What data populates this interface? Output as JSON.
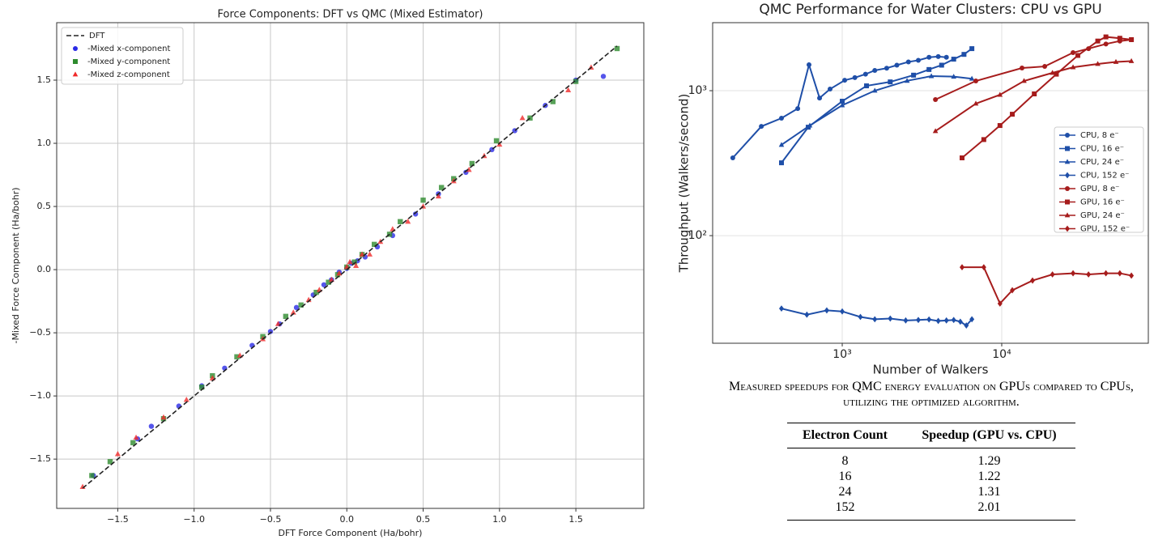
{
  "chart_data": [
    {
      "type": "scatter",
      "title": "Force Components: DFT vs QMC (Mixed Estimator)",
      "xlabel": "DFT Force Component (Ha/bohr)",
      "ylabel": "-Mixed Force Component (Ha/bohr)",
      "xlim": [
        -1.9,
        1.945
      ],
      "ylim": [
        -1.89,
        1.955
      ],
      "xticks": [
        {
          "value": -1.5,
          "label": "−1.5"
        },
        {
          "value": -1,
          "label": "−1.0"
        },
        {
          "value": -0.5,
          "label": "−0.5"
        },
        {
          "value": 0,
          "label": "0.0"
        },
        0.5,
        {
          "value": 1,
          "label": "1.0"
        },
        1.5
      ],
      "yticks": [
        {
          "value": -1.5,
          "label": "−1.5"
        },
        {
          "value": -1,
          "label": "−1.0"
        },
        {
          "value": -0.5,
          "label": "−0.5"
        },
        {
          "value": 0,
          "label": "0.0"
        },
        0.5,
        {
          "value": 1,
          "label": "1.0"
        },
        1.5
      ],
      "grid": true,
      "legend": "upper left",
      "reference_line": {
        "name": "DFT",
        "color": "#222222",
        "x": [
          -1.73,
          1.77
        ],
        "y": [
          -1.73,
          1.77
        ]
      },
      "series": [
        {
          "name": "-Mixed x-component",
          "color": "#2a2ae6",
          "marker": "circle",
          "x": [
            -1.66,
            -1.37,
            -1.28,
            -1.1,
            -0.95,
            -0.8,
            -0.62,
            -0.5,
            -0.44,
            -0.33,
            -0.22,
            -0.15,
            -0.1,
            -0.05,
            0.0,
            0.03,
            0.07,
            0.12,
            0.2,
            0.3,
            0.45,
            0.6,
            0.78,
            0.95,
            1.1,
            1.3,
            1.5,
            1.68
          ],
          "values": [
            -1.63,
            -1.34,
            -1.24,
            -1.08,
            -0.92,
            -0.78,
            -0.6,
            -0.49,
            -0.43,
            -0.3,
            -0.2,
            -0.12,
            -0.08,
            -0.02,
            0.01,
            0.05,
            0.07,
            0.1,
            0.18,
            0.27,
            0.44,
            0.6,
            0.77,
            0.95,
            1.1,
            1.3,
            1.5,
            1.53
          ]
        },
        {
          "name": "-Mixed y-component",
          "color": "#2e8b2e",
          "marker": "square",
          "x": [
            -1.67,
            -1.55,
            -1.4,
            -1.2,
            -0.95,
            -0.88,
            -0.72,
            -0.55,
            -0.4,
            -0.3,
            -0.2,
            -0.12,
            -0.06,
            0.0,
            0.05,
            0.1,
            0.18,
            0.28,
            0.35,
            0.5,
            0.62,
            0.7,
            0.82,
            0.98,
            1.2,
            1.35,
            1.5,
            1.77
          ],
          "values": [
            -1.63,
            -1.52,
            -1.37,
            -1.18,
            -0.93,
            -0.84,
            -0.69,
            -0.53,
            -0.37,
            -0.28,
            -0.18,
            -0.1,
            -0.04,
            0.02,
            0.06,
            0.12,
            0.2,
            0.28,
            0.38,
            0.55,
            0.65,
            0.72,
            0.84,
            1.02,
            1.2,
            1.33,
            1.49,
            1.75
          ]
        },
        {
          "name": "-Mixed z-component",
          "color": "#f02a2a",
          "marker": "triangle",
          "x": [
            -1.73,
            -1.5,
            -1.38,
            -1.2,
            -1.05,
            -0.88,
            -0.7,
            -0.55,
            -0.45,
            -0.35,
            -0.25,
            -0.18,
            -0.1,
            -0.05,
            0.0,
            0.02,
            0.06,
            0.1,
            0.15,
            0.22,
            0.3,
            0.4,
            0.5,
            0.6,
            0.7,
            0.8,
            0.9,
            1.0,
            1.15,
            1.45,
            1.6
          ],
          "values": [
            -1.72,
            -1.46,
            -1.33,
            -1.17,
            -1.03,
            -0.86,
            -0.68,
            -0.55,
            -0.43,
            -0.34,
            -0.24,
            -0.16,
            -0.08,
            -0.03,
            0.02,
            0.06,
            0.03,
            0.12,
            0.12,
            0.22,
            0.32,
            0.38,
            0.5,
            0.58,
            0.7,
            0.79,
            0.9,
            0.99,
            1.2,
            1.42,
            1.6
          ]
        }
      ]
    },
    {
      "type": "line",
      "title": "QMC Performance for Water Clusters: CPU vs GPU",
      "xlabel": "Number of Walkers",
      "ylabel": "Throughput (Walkers/second)",
      "xscale": "log",
      "yscale": "log",
      "xlim": [
        154,
        83000
      ],
      "ylim": [
        18.1,
        2946
      ],
      "xticks": [
        {
          "value": 1000,
          "label": "10³"
        },
        {
          "value": 10000,
          "label": "10⁴"
        }
      ],
      "yticks": [
        {
          "value": 100,
          "label": "10²"
        },
        {
          "value": 1000,
          "label": "10³"
        }
      ],
      "grid": true,
      "legend": "center right",
      "series": [
        {
          "name": "CPU, 8 e⁻",
          "color": "#1f4fa8",
          "marker": "circle",
          "x": [
            206,
            311,
            416,
            526,
            619,
            721,
            839,
            1036,
            1200,
            1400,
            1600,
            1900,
            2200,
            2600,
            3000,
            3500,
            4000,
            4500
          ],
          "values": [
            344,
            567,
            646,
            753,
            1510,
            890,
            1026,
            1180,
            1230,
            1300,
            1380,
            1430,
            1500,
            1580,
            1620,
            1700,
            1720,
            1700
          ]
        },
        {
          "name": "CPU, 16 e⁻",
          "color": "#1f4fa8",
          "marker": "square",
          "x": [
            416,
            612,
            1000,
            1420,
            2000,
            2800,
            3500,
            4200,
            5000,
            5800,
            6500
          ],
          "values": [
            318,
            560,
            846,
            1080,
            1150,
            1280,
            1400,
            1500,
            1650,
            1780,
            1950
          ]
        },
        {
          "name": "CPU, 24 e⁻",
          "color": "#1f4fa8",
          "marker": "triangle",
          "x": [
            416,
            626,
            1000,
            1600,
            2550,
            3620,
            5000,
            6500
          ],
          "values": [
            423,
            575,
            793,
            1000,
            1170,
            1260,
            1250,
            1210
          ]
        },
        {
          "name": "CPU, 152 e⁻",
          "color": "#1f4fa8",
          "marker": "diamond",
          "x": [
            416,
            600,
            800,
            1000,
            1300,
            1600,
            2000,
            2500,
            3000,
            3500,
            4000,
            4500,
            5000,
            5500,
            6000,
            6500
          ],
          "values": [
            31.4,
            28.5,
            30.5,
            30,
            27.5,
            26.5,
            26.8,
            26,
            26.2,
            26.4,
            25.8,
            26,
            26.2,
            25.5,
            24,
            26.5
          ]
        },
        {
          "name": "GPU, 8 e⁻",
          "color": "#a61c1c",
          "marker": "circle",
          "x": [
            3840,
            6880,
            13400,
            18600,
            28000,
            35000,
            45000,
            55000,
            65000
          ],
          "values": [
            868,
            1167,
            1434,
            1470,
            1830,
            1950,
            2100,
            2200,
            2250
          ]
        },
        {
          "name": "GPU, 16 e⁻",
          "color": "#a61c1c",
          "marker": "square",
          "x": [
            5640,
            7720,
            9750,
            11650,
            16000,
            22000,
            30000,
            40000,
            45000,
            55000,
            65000
          ],
          "values": [
            344,
            460,
            575,
            688,
            950,
            1300,
            1750,
            2200,
            2350,
            2300,
            2250
          ]
        },
        {
          "name": "GPU, 24 e⁻",
          "color": "#a61c1c",
          "marker": "triangle",
          "x": [
            3840,
            6880,
            9750,
            13800,
            20800,
            28000,
            40000,
            52000,
            65000
          ],
          "values": [
            526,
            814,
            937,
            1167,
            1327,
            1450,
            1530,
            1580,
            1600
          ]
        },
        {
          "name": "GPU, 152 e⁻",
          "color": "#a61c1c",
          "marker": "diamond",
          "x": [
            5640,
            7720,
            9750,
            11650,
            15600,
            20800,
            28000,
            35000,
            45000,
            55000,
            65000
          ],
          "values": [
            60.5,
            60.5,
            34,
            42,
            49,
            54,
            55,
            54,
            55,
            55,
            53
          ]
        }
      ]
    }
  ],
  "table": {
    "caption": "Measured speedups for QMC energy evaluation on GPUs compared to CPUs, utilizing the optimized algorithm.",
    "header": [
      "Electron Count",
      "Speedup (GPU vs. CPU)"
    ],
    "rows": [
      [
        8,
        1.29
      ],
      [
        16,
        1.22
      ],
      [
        24,
        1.31
      ],
      [
        152,
        2.01
      ]
    ]
  }
}
